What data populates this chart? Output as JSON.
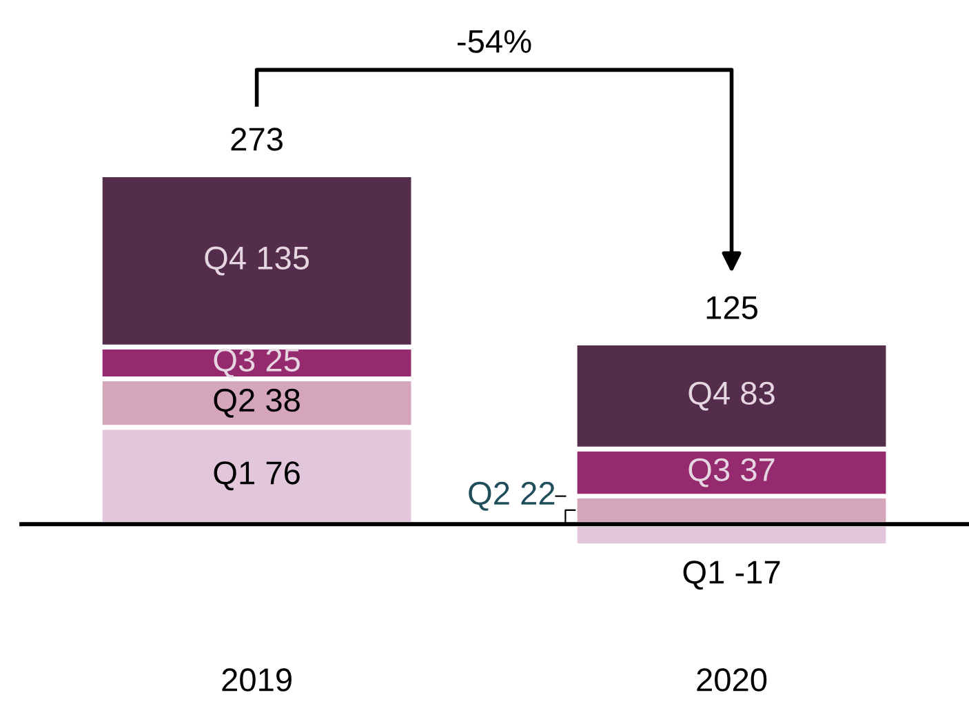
{
  "chart_data": {
    "type": "bar",
    "stacked": true,
    "categories": [
      "2019",
      "2020"
    ],
    "series": [
      {
        "color": "#e2c6dc",
        "values": [
          76,
          -17
        ],
        "value_labels": [
          "Q1 76",
          "Q1 -17"
        ]
      },
      {
        "color": "#d4a5bb",
        "values": [
          38,
          22
        ],
        "value_labels": [
          "Q2 38",
          "Q2 22"
        ]
      },
      {
        "color": "#962a6e",
        "values": [
          25,
          37
        ],
        "value_labels": [
          "Q3 25",
          "Q3 37"
        ]
      },
      {
        "color": "#542c4c",
        "values": [
          135,
          83
        ],
        "value_labels": [
          "Q4 135",
          "Q4 83"
        ]
      }
    ],
    "totals": [
      "273",
      "125"
    ],
    "annotations": [
      "-54%"
    ],
    "grid": false,
    "legend": false
  }
}
